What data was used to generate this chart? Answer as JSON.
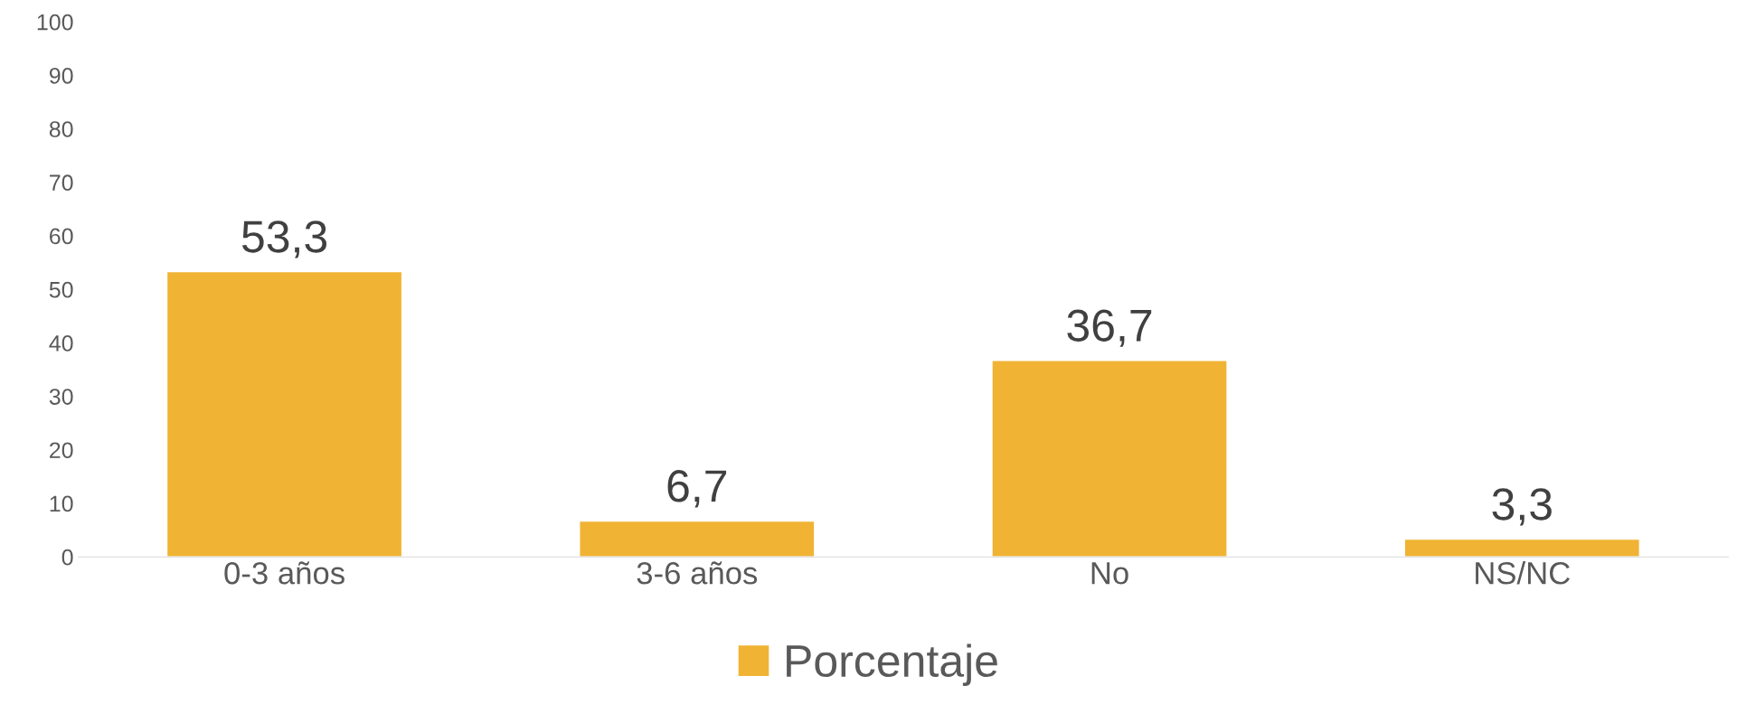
{
  "chart_data": {
    "type": "bar",
    "categories": [
      "0-3 años",
      "3-6 años",
      "No",
      "NS/NC"
    ],
    "series": [
      {
        "name": "Porcentaje",
        "color": "#f0b334",
        "values": [
          53.3,
          6.7,
          36.7,
          3.3
        ],
        "value_labels": [
          "53,3",
          "6,7",
          "36,7",
          "3,3"
        ]
      }
    ],
    "ylim": [
      0,
      100
    ],
    "yticks": [
      0,
      10,
      20,
      30,
      40,
      50,
      60,
      70,
      80,
      90,
      100
    ],
    "grid": false,
    "legend": "bottom"
  }
}
